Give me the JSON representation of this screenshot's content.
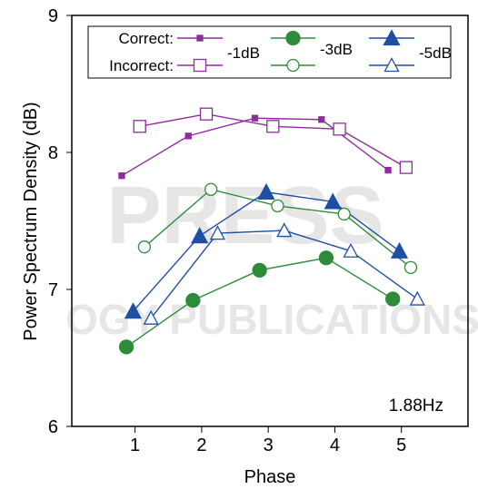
{
  "chart_data": {
    "type": "line",
    "xlabel": "Phase",
    "ylabel": "Power Spectrum Density (dB)",
    "xlim": [
      0.05,
      6.0
    ],
    "ylim": [
      6,
      9
    ],
    "x_ticks": [
      "1",
      "2",
      "3",
      "4",
      "5"
    ],
    "y_ticks": [
      "6",
      "7",
      "8",
      "9"
    ],
    "annotation": "1.88Hz",
    "watermark": [
      "PRESS",
      "OGY PUBLICATIONS"
    ],
    "legend": {
      "placement": "top",
      "row_labels": [
        "Correct:",
        "Incorrect:"
      ],
      "column_labels": [
        "-1dB",
        "-3dB",
        "-5dB"
      ]
    },
    "series": [
      {
        "level": "-1dB",
        "response": "Correct",
        "color": "#8e2c9e",
        "marker": "filled-square",
        "x": [
          0.8,
          1.8,
          2.8,
          3.8,
          4.8
        ],
        "values": [
          7.83,
          8.12,
          8.25,
          8.24,
          7.87
        ]
      },
      {
        "level": "-1dB",
        "response": "Incorrect",
        "color": "#8e2c9e",
        "marker": "open-square",
        "x": [
          1.07,
          2.07,
          3.07,
          4.07,
          5.07
        ],
        "values": [
          8.19,
          8.28,
          8.19,
          8.17,
          7.89
        ]
      },
      {
        "level": "-3dB",
        "response": "Correct",
        "color": "#2e8b3a",
        "marker": "filled-circle",
        "x": [
          0.87,
          1.87,
          2.87,
          3.87,
          4.87
        ],
        "values": [
          6.58,
          6.92,
          7.14,
          7.23,
          6.93
        ]
      },
      {
        "level": "-3dB",
        "response": "Incorrect",
        "color": "#2e8b3a",
        "marker": "open-circle",
        "x": [
          1.14,
          2.14,
          3.14,
          4.14,
          5.14
        ],
        "values": [
          7.31,
          7.73,
          7.61,
          7.55,
          7.16
        ]
      },
      {
        "level": "-5dB",
        "response": "Correct",
        "color": "#1f4fa3",
        "marker": "filled-triangle",
        "x": [
          0.97,
          1.97,
          2.97,
          3.97,
          4.97
        ],
        "values": [
          6.84,
          7.39,
          7.71,
          7.64,
          7.28
        ]
      },
      {
        "level": "-5dB",
        "response": "Incorrect",
        "color": "#1f4fa3",
        "marker": "open-triangle",
        "x": [
          1.24,
          2.24,
          3.24,
          4.24,
          5.24
        ],
        "values": [
          6.79,
          7.41,
          7.43,
          7.28,
          6.93
        ]
      }
    ]
  }
}
